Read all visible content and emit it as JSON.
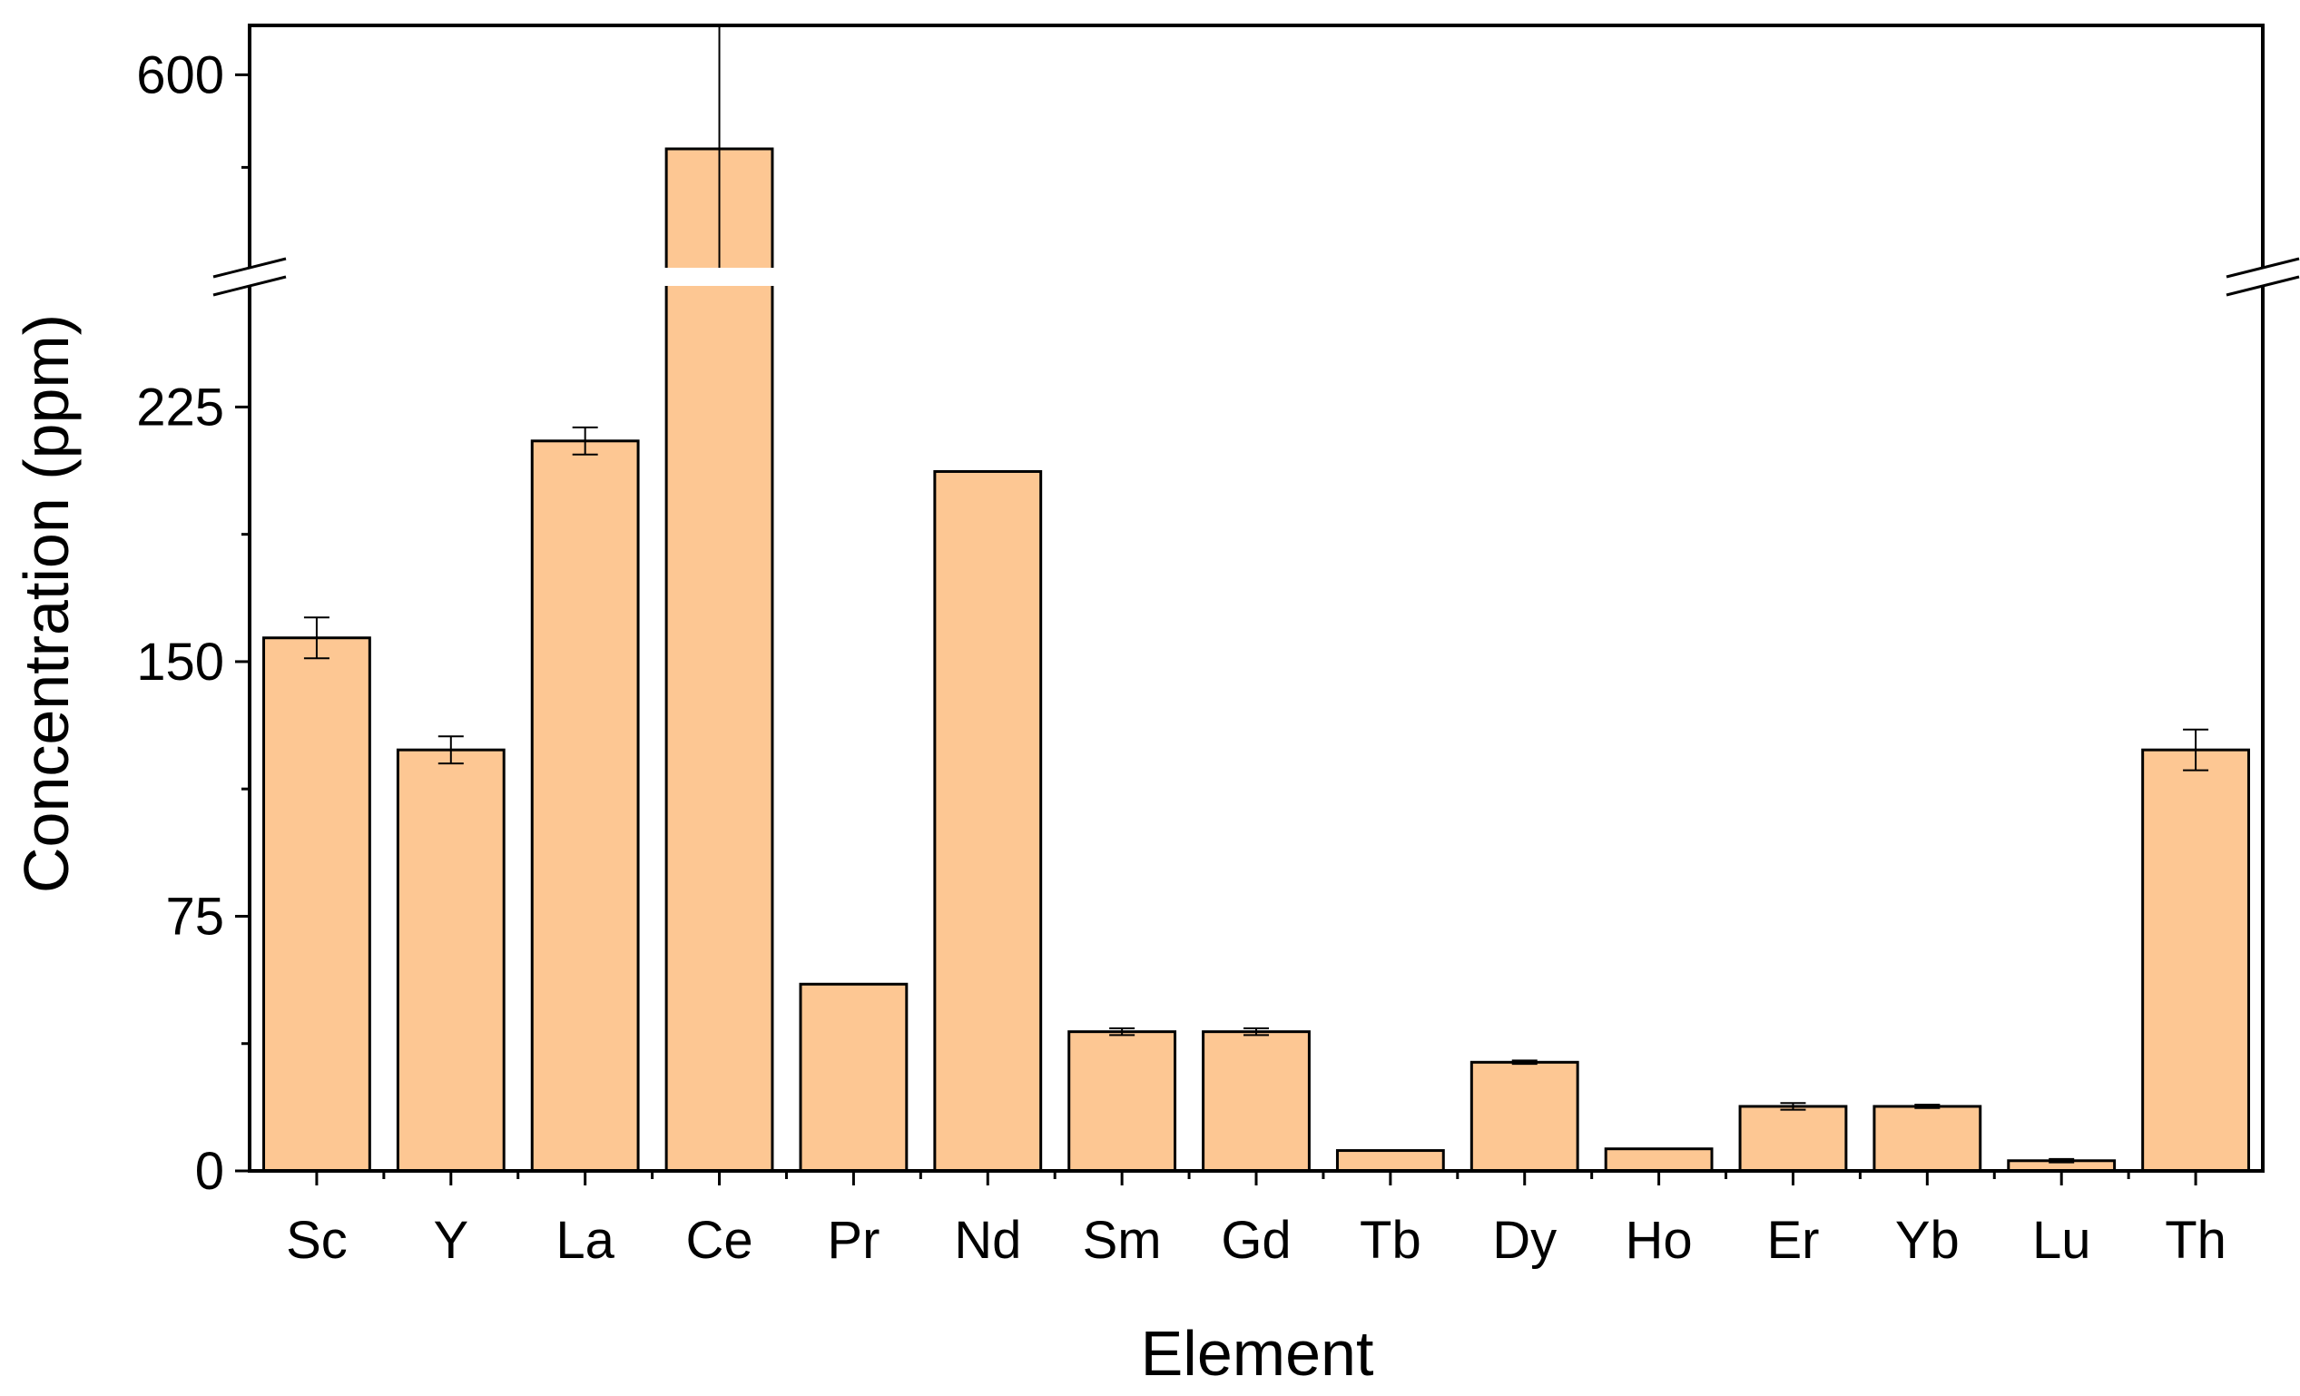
{
  "chart_data": {
    "type": "bar",
    "title": "",
    "xlabel": "Element",
    "ylabel": "Concentration (ppm)",
    "categories": [
      "Sc",
      "Y",
      "La",
      "Ce",
      "Pr",
      "Nd",
      "Sm",
      "Gd",
      "Tb",
      "Dy",
      "Ho",
      "Er",
      "Yb",
      "Lu",
      "Th"
    ],
    "values": [
      157,
      124,
      215,
      570,
      55,
      206,
      41,
      41,
      6,
      32,
      6.5,
      19,
      19,
      3,
      124
    ],
    "error": [
      6,
      4,
      4,
      50,
      0,
      0,
      1,
      1,
      0,
      0.5,
      0,
      1,
      0.5,
      0.5,
      6
    ],
    "ylim_lower": [
      0,
      262
    ],
    "ylim_upper": [
      520,
      620
    ],
    "yticks_lower": [
      0,
      75,
      150,
      225
    ],
    "yticks_upper": [
      600
    ],
    "axis_break": true,
    "bar_color": "#fdc793",
    "edge_color": "#000000",
    "grid": false
  }
}
